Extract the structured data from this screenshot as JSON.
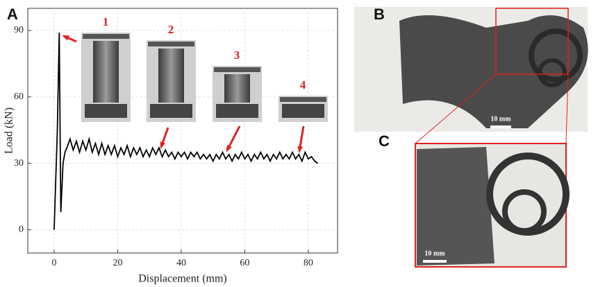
{
  "chart_data": {
    "type": "line",
    "xlabel": "Displacement (mm)",
    "ylabel": "Load (kN)",
    "x": [
      0,
      1,
      1.6,
      2.1,
      2.8,
      3.4,
      4,
      5,
      6,
      7,
      8,
      9,
      10,
      11,
      12,
      13,
      14,
      15,
      16,
      17,
      18,
      19,
      20,
      21,
      22,
      23,
      24,
      25,
      26,
      27,
      28,
      29,
      30,
      31,
      32,
      33,
      34,
      35,
      36,
      37,
      38,
      39,
      40,
      41,
      42,
      43,
      44,
      45,
      46,
      47,
      48,
      49,
      50,
      51,
      52,
      53,
      54,
      55,
      56,
      57,
      58,
      59,
      60,
      61,
      62,
      63,
      64,
      65,
      66,
      67,
      68,
      69,
      70,
      71,
      72,
      73,
      74,
      75,
      76,
      77,
      78,
      79,
      80,
      81,
      82,
      83
    ],
    "series": [
      {
        "color": "#000000",
        "values": [
          0,
          45,
          89,
          8,
          30,
          35,
          37,
          41,
          36,
          40,
          35,
          40,
          36,
          41,
          35,
          39,
          34,
          39,
          34,
          38,
          34,
          38,
          33,
          37,
          34,
          38,
          33,
          37,
          34,
          37,
          33,
          36,
          33,
          37,
          34,
          37,
          33,
          36,
          33,
          35,
          32,
          35,
          33,
          35,
          32,
          35,
          33,
          35,
          32,
          34,
          32,
          34,
          31,
          34,
          32,
          35,
          32,
          34,
          31,
          34,
          32,
          35,
          32,
          34,
          31,
          34,
          32,
          35,
          32,
          34,
          31,
          34,
          32,
          35,
          32,
          34,
          32,
          35,
          32,
          34,
          31,
          35,
          32,
          33,
          31,
          30
        ]
      }
    ],
    "xlim": [
      -8.3,
      89.2
    ],
    "ylim": [
      -10.5,
      100
    ],
    "xticks": [
      0,
      20,
      40,
      60,
      80
    ],
    "yticks": [
      0,
      30,
      60,
      90
    ],
    "grid": true,
    "annotations": [
      "1",
      "2",
      "3",
      "4"
    ]
  },
  "panels": {
    "labels": [
      "A",
      "B",
      "C"
    ],
    "scale_bars": [
      "10 mm",
      "10 mm"
    ]
  }
}
